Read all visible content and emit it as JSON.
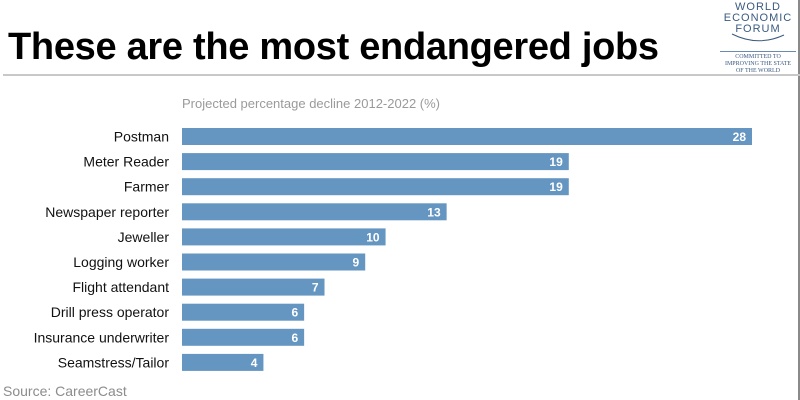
{
  "header": {
    "title": "These are the most endangered jobs",
    "logo": {
      "lines": [
        "WORLD",
        "ECONOMIC",
        "FORUM"
      ],
      "tagline": [
        "COMMITTED TO",
        "IMPROVING THE STATE",
        "OF THE WORLD"
      ]
    }
  },
  "footer": {
    "source": "Source: CareerCast"
  },
  "colors": {
    "bar": "#6596c2",
    "label": "#111111"
  },
  "chart_data": {
    "type": "bar",
    "orientation": "horizontal",
    "title": "These are the most endangered jobs",
    "subtitle": "Projected percentage decline 2012-2022 (%)",
    "xlabel": "",
    "ylabel": "",
    "categories": [
      "Postman",
      "Meter Reader",
      "Farmer",
      "Newspaper reporter",
      "Jeweller",
      "Logging worker",
      "Flight attendant",
      "Drill press operator",
      "Insurance underwriter",
      "Seamstress/Tailor"
    ],
    "values": [
      28,
      19,
      19,
      13,
      10,
      9,
      7,
      6,
      6,
      4
    ],
    "xlim": [
      0,
      28
    ],
    "grid": false,
    "data_labels": true,
    "source": "Source: CareerCast"
  }
}
